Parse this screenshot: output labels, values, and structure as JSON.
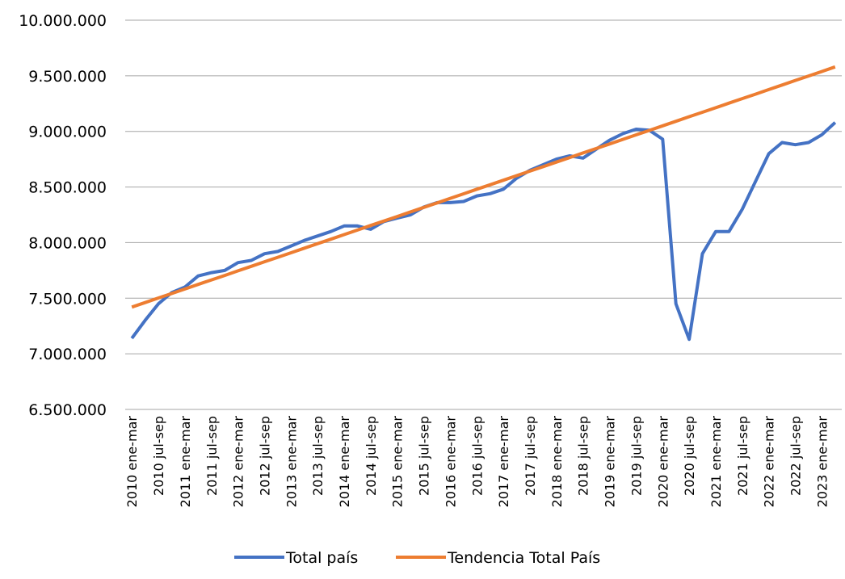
{
  "chart_data": {
    "type": "line",
    "categories": [
      "2010 ene-mar",
      null,
      "2010 jul-sep",
      null,
      "2011 ene-mar",
      null,
      "2011 jul-sep",
      null,
      "2012 ene-mar",
      null,
      "2012 jul-sep",
      null,
      "2013 ene-mar",
      null,
      "2013 jul-sep",
      null,
      "2014 ene-mar",
      null,
      "2014 jul-sep",
      null,
      "2015 ene-mar",
      null,
      "2015 jul-sep",
      null,
      "2016 ene-mar",
      null,
      "2016 jul-sep",
      null,
      "2017 ene-mar",
      null,
      "2017 jul-sep",
      null,
      "2018 ene-mar",
      null,
      "2018 jul-sep",
      null,
      "2019 ene-mar",
      null,
      "2019 jul-sep",
      null,
      "2020 ene-mar",
      null,
      "2020 jul-sep",
      null,
      "2021 ene-mar",
      null,
      "2021 jul-sep",
      null,
      "2022 ene-mar",
      null,
      "2022 jul-sep",
      null,
      "2023 ene-mar",
      null
    ],
    "series": [
      {
        "name": "Total país",
        "color": "#4472c4",
        "values": [
          7140000,
          7300000,
          7450000,
          7550000,
          7600000,
          7700000,
          7730000,
          7750000,
          7820000,
          7840000,
          7900000,
          7920000,
          7970000,
          8020000,
          8060000,
          8100000,
          8150000,
          8150000,
          8120000,
          8190000,
          8220000,
          8250000,
          8320000,
          8360000,
          8360000,
          8370000,
          8420000,
          8440000,
          8480000,
          8580000,
          8650000,
          8700000,
          8750000,
          8780000,
          8760000,
          8840000,
          8920000,
          8980000,
          9020000,
          9010000,
          8930000,
          7450000,
          7130000,
          7900000,
          8100000,
          8100000,
          8300000,
          8550000,
          8800000,
          8900000,
          8880000,
          8900000,
          8970000,
          9080000
        ]
      },
      {
        "name": "Tendencia Total País",
        "color": "#ed7d31",
        "values": [
          7420000,
          7461000,
          7502000,
          7542000,
          7583000,
          7624000,
          7665000,
          7705000,
          7746000,
          7787000,
          7828000,
          7868000,
          7909000,
          7950000,
          7991000,
          8031000,
          8072000,
          8113000,
          8154000,
          8194000,
          8235000,
          8276000,
          8317000,
          8357000,
          8398000,
          8439000,
          8480000,
          8520000,
          8561000,
          8602000,
          8643000,
          8683000,
          8724000,
          8765000,
          8806000,
          8846000,
          8887000,
          8928000,
          8969000,
          9009000,
          9050000,
          9091000,
          9132000,
          9172000,
          9213000,
          9254000,
          9295000,
          9335000,
          9376000,
          9417000,
          9458000,
          9498000,
          9539000,
          9580000
        ]
      }
    ],
    "ylim": [
      6500000,
      10000000
    ],
    "yticks": [
      {
        "value": 6500000,
        "label": "6.500.000"
      },
      {
        "value": 7000000,
        "label": "7.000.000"
      },
      {
        "value": 7500000,
        "label": "7.500.000"
      },
      {
        "value": 8000000,
        "label": "8.000.000"
      },
      {
        "value": 8500000,
        "label": "8.500.000"
      },
      {
        "value": 9000000,
        "label": "9.000.000"
      },
      {
        "value": 9500000,
        "label": "9.500.000"
      },
      {
        "value": 10000000,
        "label": "10.000.000"
      }
    ],
    "grid": true,
    "legend": "bottom"
  }
}
